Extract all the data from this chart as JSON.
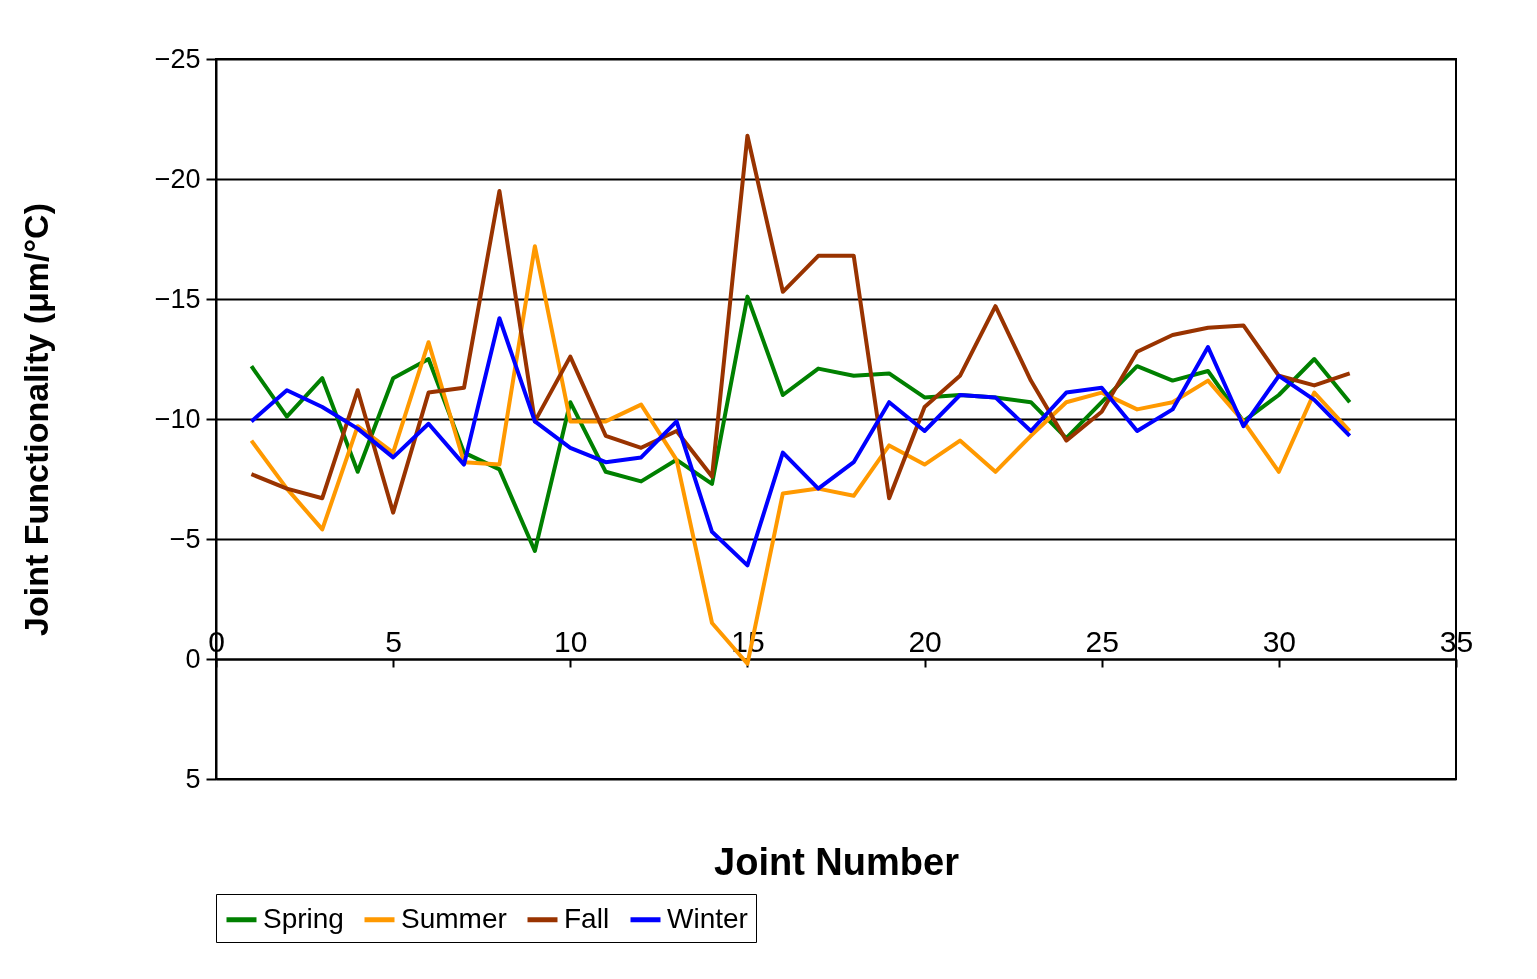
{
  "chart_data": {
    "type": "line",
    "xlabel": "Joint Number",
    "ylabel": "Joint Functionality (μm/°C)",
    "x": [
      1,
      2,
      3,
      4,
      5,
      6,
      7,
      8,
      9,
      10,
      11,
      12,
      13,
      14,
      15,
      16,
      17,
      18,
      19,
      20,
      21,
      22,
      23,
      24,
      25,
      26,
      27,
      28,
      29,
      30,
      31,
      32
    ],
    "xlim": [
      0,
      35
    ],
    "xticks": [
      0,
      5,
      10,
      15,
      20,
      25,
      30,
      35
    ],
    "ylim": [
      5,
      -25
    ],
    "yticks": [
      5,
      0,
      -5,
      -10,
      -15,
      -20,
      -25
    ],
    "grid": "y",
    "legend": "bottom",
    "marker": "none",
    "series": [
      {
        "name": "Spring",
        "color": "#008000",
        "values": [
          -12.2,
          -10.1,
          -11.7,
          -7.8,
          -11.7,
          -12.5,
          -8.6,
          -7.9,
          -4.5,
          -10.7,
          -7.8,
          -7.4,
          -8.3,
          -7.3,
          -15.1,
          -11.0,
          -12.1,
          -11.8,
          -11.9,
          -10.9,
          -11.0,
          -10.9,
          -10.7,
          -9.2,
          -10.7,
          -12.2,
          -11.6,
          -12.0,
          -9.9,
          -11.0,
          -12.5,
          -10.7
        ]
      },
      {
        "name": "Summer",
        "color": "#ff9900",
        "values": [
          -9.1,
          -7.1,
          -5.4,
          -9.7,
          -8.6,
          -13.2,
          -8.2,
          -8.1,
          -17.2,
          -9.9,
          -9.9,
          -10.6,
          -8.3,
          -1.5,
          0.2,
          -6.9,
          -7.1,
          -6.8,
          -8.9,
          -8.1,
          -9.1,
          -7.8,
          -9.3,
          -10.7,
          -11.1,
          -10.4,
          -10.7,
          -11.6,
          -9.9,
          -7.8,
          -11.1,
          -9.5
        ]
      },
      {
        "name": "Fall",
        "color": "#993300",
        "values": [
          -7.7,
          -7.1,
          -6.7,
          -11.2,
          -6.1,
          -11.1,
          -11.3,
          -19.5,
          -9.9,
          -12.6,
          -9.3,
          -8.8,
          -9.5,
          -7.6,
          -21.8,
          -15.3,
          -16.8,
          -16.8,
          -6.7,
          -10.5,
          -11.8,
          -14.7,
          -11.6,
          -9.1,
          -10.3,
          -12.8,
          -13.5,
          -13.8,
          -13.9,
          -11.8,
          -11.4,
          -11.9
        ]
      },
      {
        "name": "Winter",
        "color": "#0000ff",
        "values": [
          -9.9,
          -11.2,
          -10.5,
          -9.6,
          -8.4,
          -9.8,
          -8.1,
          -14.2,
          -9.9,
          -8.8,
          -8.2,
          -8.4,
          -9.9,
          -5.3,
          -3.9,
          -8.6,
          -7.1,
          -8.2,
          -10.7,
          -9.5,
          -11.0,
          -10.9,
          -9.5,
          -11.1,
          -11.3,
          -9.5,
          -10.4,
          -13.0,
          -9.7,
          -11.8,
          -10.8,
          -9.3
        ]
      }
    ]
  }
}
